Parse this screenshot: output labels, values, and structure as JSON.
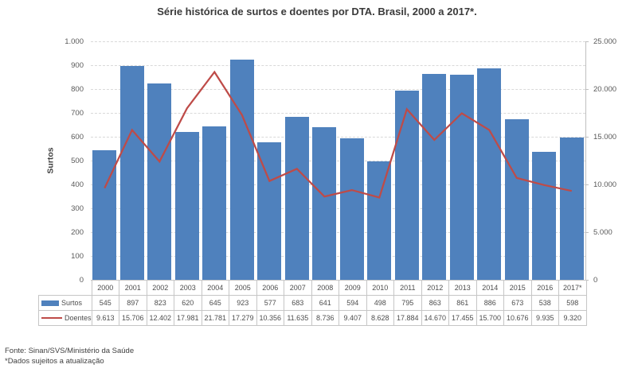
{
  "chart_data": {
    "type": "bar+line",
    "title": "Série histórica de surtos e doentes por DTA. Brasil, 2000 a 2017*.",
    "categories": [
      "2000",
      "2001",
      "2002",
      "2003",
      "2004",
      "2005",
      "2006",
      "2007",
      "2008",
      "2009",
      "2010",
      "2011",
      "2012",
      "2013",
      "2014",
      "2015",
      "2016",
      "2017*"
    ],
    "series": [
      {
        "name": "Surtos",
        "type": "bar",
        "axis": "left",
        "color": "#4F81BD",
        "values": [
          545,
          897,
          823,
          620,
          645,
          923,
          577,
          683,
          641,
          594,
          498,
          795,
          863,
          861,
          886,
          673,
          538,
          598
        ],
        "display": [
          "545",
          "897",
          "823",
          "620",
          "645",
          "923",
          "577",
          "683",
          "641",
          "594",
          "498",
          "795",
          "863",
          "861",
          "886",
          "673",
          "538",
          "598"
        ]
      },
      {
        "name": "Doentes",
        "type": "line",
        "axis": "right",
        "color": "#BE4B48",
        "values": [
          9613,
          15706,
          12402,
          17981,
          21781,
          17279,
          10356,
          11635,
          8736,
          9407,
          8628,
          17884,
          14670,
          17455,
          15700,
          10676,
          9935,
          9320
        ],
        "display": [
          "9.613",
          "15.706",
          "12.402",
          "17.981",
          "21.781",
          "17.279",
          "10.356",
          "11.635",
          "8.736",
          "9.407",
          "8.628",
          "17.884",
          "14.670",
          "17.455",
          "15.700",
          "10.676",
          "9.935",
          "9.320"
        ]
      }
    ],
    "left_axis": {
      "label": "Surtos",
      "min": 0,
      "max": 1000,
      "step": 100,
      "tick_labels": [
        "0",
        "100",
        "200",
        "300",
        "400",
        "500",
        "600",
        "700",
        "800",
        "900",
        "1.000"
      ]
    },
    "right_axis": {
      "min": 0,
      "max": 25000,
      "step": 5000,
      "tick_labels": [
        "0",
        "5.000",
        "10.000",
        "15.000",
        "20.000",
        "25.000"
      ]
    },
    "grid": "horizontal-dashed",
    "legend_position": "data-table-left",
    "colors": {
      "bar": "#4F81BD",
      "line": "#BE4B48",
      "gridline": "#D9D9D9",
      "axis": "#BFBFBF",
      "table_border": "#C6C6C6"
    }
  },
  "footer": {
    "source": "Fonte: Sinan/SVS/Ministério da Saúde",
    "note": "*Dados sujeitos a atualização"
  }
}
